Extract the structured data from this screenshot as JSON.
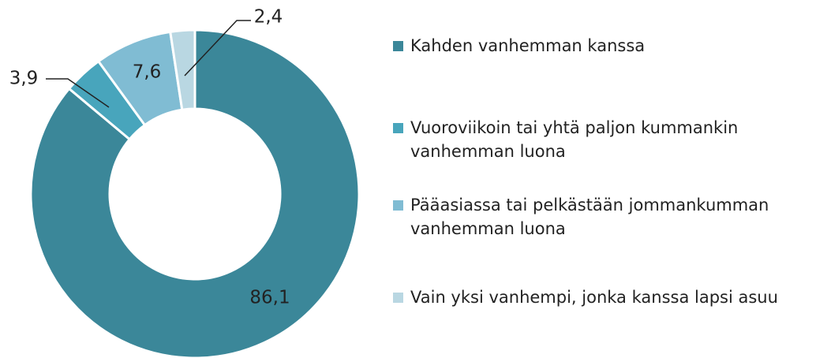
{
  "chart_data": {
    "type": "pie",
    "donut": true,
    "categories": [
      "Kahden vanhemman kanssa",
      "Vuoroviikoin tai yhtä paljon kummankin vanhemman luona",
      "Pääasiassa tai pelkästään jommankumman vanhemman luona",
      "Vain yksi vanhempi, jonka kanssa lapsi asuu"
    ],
    "values": [
      86.1,
      3.9,
      7.6,
      2.4
    ],
    "value_labels": [
      "86,1",
      "3,9",
      "7,6",
      "2,4"
    ],
    "colors": [
      "#3b8799",
      "#48a5bc",
      "#80bcd3",
      "#b9d7e2"
    ],
    "legend": "right"
  }
}
